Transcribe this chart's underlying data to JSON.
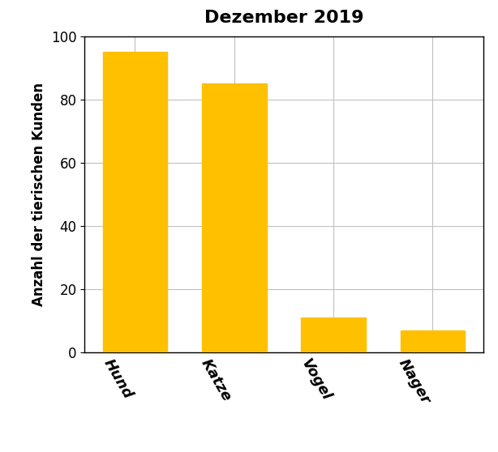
{
  "title": "Dezember 2019",
  "categories": [
    "Hund",
    "Katze",
    "Vogel",
    "Nager"
  ],
  "values": [
    95,
    85,
    11,
    7
  ],
  "bar_color": "#FFC000",
  "ylabel": "Anzahl der tierischen Kunden",
  "ylim": [
    0,
    100
  ],
  "yticks": [
    0,
    20,
    40,
    60,
    80,
    100
  ],
  "title_fontsize": 16,
  "ylabel_fontsize": 12,
  "tick_fontsize": 12,
  "xtick_fontsize": 13,
  "bar_width": 0.65,
  "background_color": "#ffffff",
  "grid_color": "#c0c0c0",
  "border_color": "#000000",
  "label_rotation": -60
}
